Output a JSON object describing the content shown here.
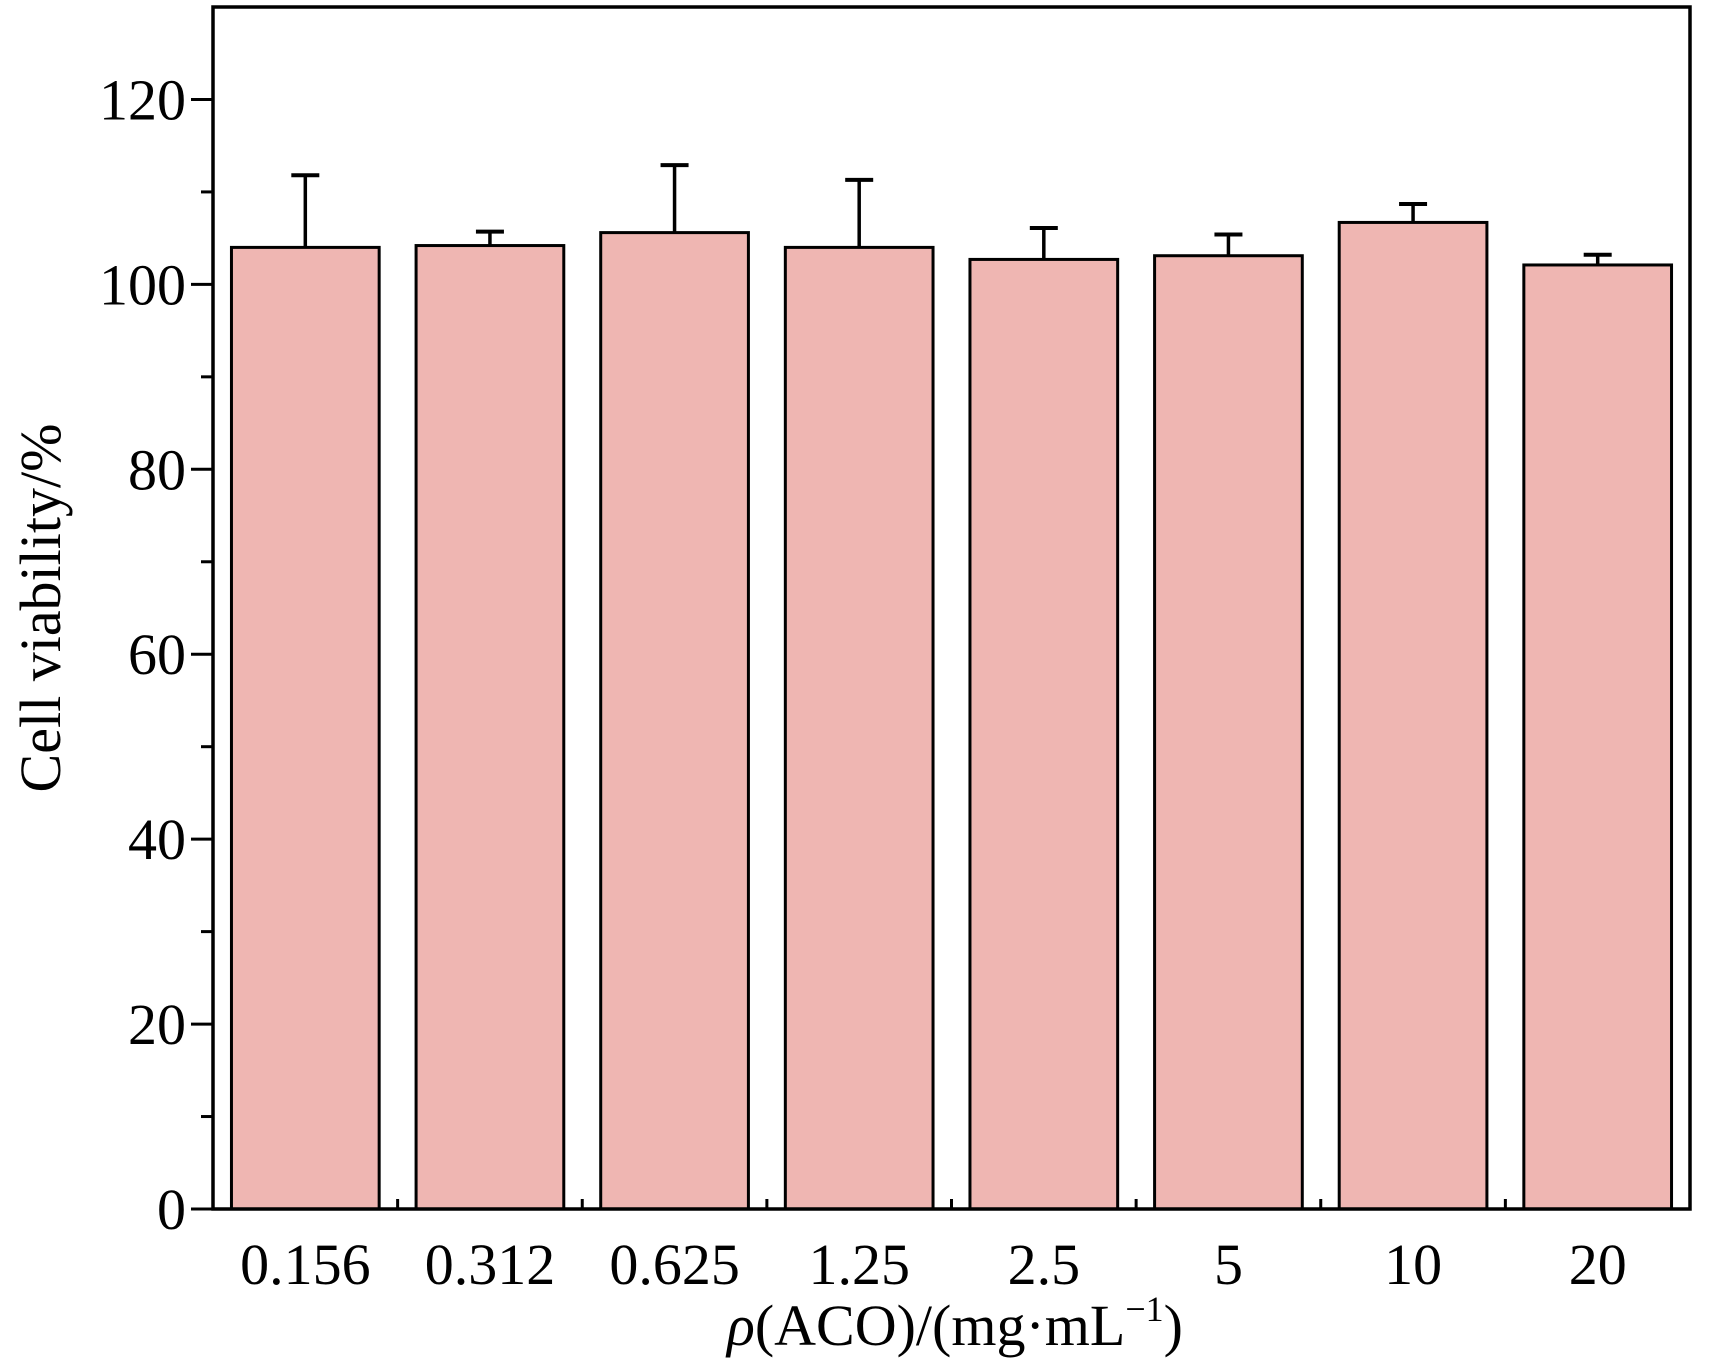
{
  "chart_data": {
    "type": "bar",
    "title": "",
    "xlabel": "ρ(ACO)/(mg·mL⁻¹)",
    "xlabel_parts": {
      "symbol": "ρ",
      "rest": "(ACO)/(mg·mL",
      "superscript": "−1",
      "close": ")"
    },
    "ylabel": "Cell viability/%",
    "categories": [
      "0.156",
      "0.312",
      "0.625",
      "1.25",
      "2.5",
      "5",
      "10",
      "20"
    ],
    "values": [
      104,
      104.2,
      105.6,
      104,
      102.7,
      103.1,
      106.7,
      102.1
    ],
    "error_upper": [
      7.8,
      1.5,
      7.3,
      7.3,
      3.4,
      2.3,
      2.0,
      1.1
    ],
    "ylim": [
      0,
      130
    ],
    "yticks": [
      0,
      20,
      40,
      60,
      80,
      100,
      120
    ],
    "ytick_labels": [
      "0",
      "20",
      "40",
      "60",
      "80",
      "100",
      "120"
    ],
    "grid": false,
    "legend": "none",
    "bar_color": "#efb6b2",
    "edge_color": "#000000"
  }
}
